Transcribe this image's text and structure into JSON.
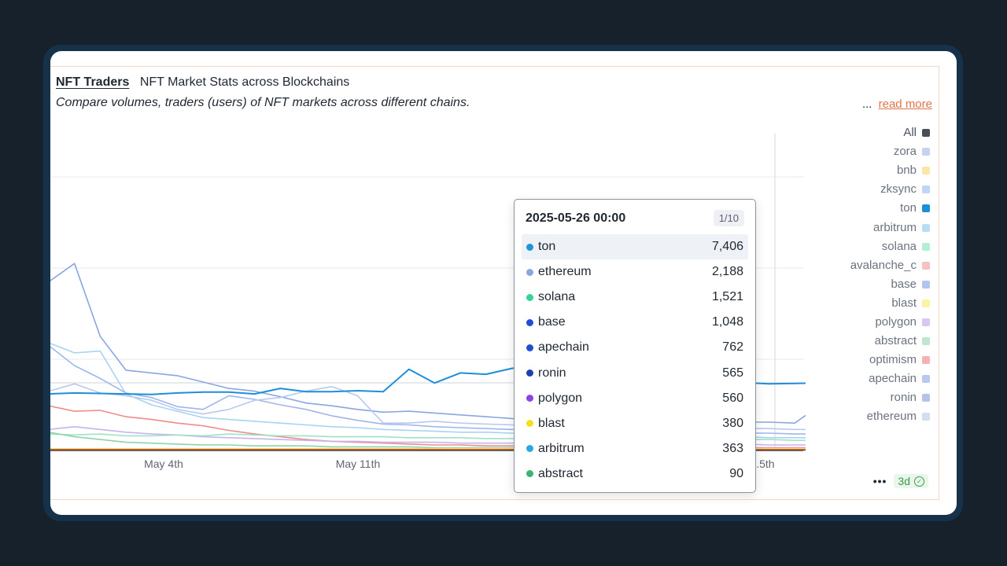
{
  "header": {
    "title_link": "NFT Traders",
    "title_sub": "NFT Market Stats across Blockchains",
    "description": "Compare volumes, traders (users) of NFT markets across different chains.",
    "ellipsis": "...",
    "read_more": "read more"
  },
  "legend": [
    {
      "label": "All",
      "color": "#4a4f55"
    },
    {
      "label": "zora",
      "color": "#c5d3ef"
    },
    {
      "label": "bnb",
      "color": "#fbe6a8"
    },
    {
      "label": "zksync",
      "color": "#c2d4f4"
    },
    {
      "label": "ton",
      "color": "#1f8ed8"
    },
    {
      "label": "arbitrum",
      "color": "#b6dff6"
    },
    {
      "label": "solana",
      "color": "#b3efd6"
    },
    {
      "label": "avalanche_c",
      "color": "#f5c2c2"
    },
    {
      "label": "base",
      "color": "#b3c4f0"
    },
    {
      "label": "blast",
      "color": "#fbf3a6"
    },
    {
      "label": "polygon",
      "color": "#d7c8f3"
    },
    {
      "label": "abstract",
      "color": "#bfe6cf"
    },
    {
      "label": "optimism",
      "color": "#f6b2b2"
    },
    {
      "label": "apechain",
      "color": "#b7c8f1"
    },
    {
      "label": "ronin",
      "color": "#b4c2ec"
    },
    {
      "label": "ethereum",
      "color": "#d3dff1"
    }
  ],
  "tooltip": {
    "date": "2025-05-26 00:00",
    "page": "1/10",
    "rows": [
      {
        "name": "ton",
        "value": "7,406",
        "color": "#1f94d6"
      },
      {
        "name": "ethereum",
        "value": "2,188",
        "color": "#8aa6e0"
      },
      {
        "name": "solana",
        "value": "1,521",
        "color": "#34d399"
      },
      {
        "name": "base",
        "value": "1,048",
        "color": "#1d4ed8"
      },
      {
        "name": "apechain",
        "value": "762",
        "color": "#1f4fd0"
      },
      {
        "name": "ronin",
        "value": "565",
        "color": "#1e40af"
      },
      {
        "name": "polygon",
        "value": "560",
        "color": "#8b45e0"
      },
      {
        "name": "blast",
        "value": "380",
        "color": "#f5e11a"
      },
      {
        "name": "arbitrum",
        "value": "363",
        "color": "#2ba8e0"
      },
      {
        "name": "abstract",
        "value": "90",
        "color": "#3cb371"
      }
    ]
  },
  "footer": {
    "ellipsis": "•••",
    "range": "3d"
  },
  "chart_data": {
    "type": "line",
    "x_tick_labels": [
      "May 4th",
      "May 11th",
      "...5th"
    ],
    "grid": true,
    "series": [
      {
        "name": "ton",
        "color": "#1f8ed8",
        "values": [
          6.2,
          6.3,
          6.25,
          6.2,
          6.15,
          6.3,
          6.4,
          6.4,
          6.2,
          6.8,
          6.45,
          6.45,
          6.55,
          6.45,
          8.9,
          7.4,
          8.5,
          8.35,
          9.0,
          9.3,
          8.2,
          7.6,
          7.4,
          7.5,
          7.45,
          7.35,
          7.4,
          7.45,
          7.3,
          7.35,
          7.4
        ]
      },
      {
        "name": "ethereum",
        "color": "#8aa6e0",
        "values": [
          18.5,
          20.5,
          12.5,
          8.8,
          8.5,
          8.2,
          7.5,
          6.8,
          6.5,
          5.9,
          5.2,
          4.9,
          4.5,
          4.2,
          4.3,
          4.1,
          3.9,
          3.7,
          3.5,
          3.4,
          3.4,
          3.3,
          3.3,
          3.3,
          3.3,
          3.2,
          3.2,
          3.1,
          3.1,
          3.0,
          5.0
        ]
      },
      {
        "name": "arbitrum",
        "color": "#a7d4f2",
        "values": [
          11.8,
          10.7,
          10.9,
          6.2,
          5.0,
          4.3,
          3.6,
          3.4,
          3.2,
          3.0,
          2.8,
          2.6,
          2.5,
          2.3,
          2.2,
          2.1,
          2.0,
          2.0,
          1.9,
          1.8,
          1.8,
          1.7,
          1.7,
          1.6,
          1.6,
          1.5,
          1.5,
          1.5,
          1.4,
          1.4,
          1.4
        ]
      },
      {
        "name": "base",
        "color": "#9eb6ea",
        "values": [
          11.5,
          9.3,
          7.9,
          6.3,
          5.8,
          4.8,
          4.5,
          6.0,
          5.6,
          5.0,
          4.5,
          3.8,
          3.3,
          2.9,
          2.8,
          2.6,
          2.5,
          2.4,
          2.3,
          2.2,
          2.2,
          2.1,
          2.1,
          2.0,
          2.0,
          2.0,
          1.9,
          1.9,
          1.9,
          1.8,
          1.8
        ]
      },
      {
        "name": "zksync",
        "color": "#b8c9f0",
        "values": [
          6.5,
          7.3,
          6.3,
          6.0,
          5.5,
          4.5,
          4.0,
          4.5,
          5.5,
          5.8,
          6.5,
          7.0,
          6.0,
          3.0,
          3.0,
          3.2,
          3.0,
          2.9,
          2.8,
          2.7,
          2.7,
          2.6,
          2.6,
          2.5,
          2.5,
          2.5,
          2.4,
          2.4,
          2.4,
          2.3,
          2.3
        ]
      },
      {
        "name": "optimism",
        "color": "#f08b8b",
        "values": [
          4.9,
          4.3,
          4.4,
          3.7,
          3.4,
          3.0,
          2.7,
          2.2,
          1.8,
          1.5,
          1.2,
          1.0,
          0.9,
          0.8,
          0.7,
          0.6,
          0.6,
          0.5,
          0.5,
          0.5,
          0.4,
          0.4,
          0.4,
          0.4,
          0.3,
          0.3,
          0.3,
          0.3,
          0.3,
          0.3,
          0.3
        ]
      },
      {
        "name": "polygon",
        "color": "#c7b3ef",
        "values": [
          2.3,
          2.6,
          2.3,
          2.0,
          1.8,
          1.7,
          1.5,
          1.4,
          1.3,
          1.2,
          1.1,
          1.0,
          1.0,
          0.9,
          0.9,
          0.9,
          0.8,
          0.8,
          0.8,
          0.8,
          0.7,
          0.7,
          0.7,
          0.7,
          0.7,
          0.7,
          0.7,
          0.7,
          0.6,
          0.6,
          0.6
        ]
      },
      {
        "name": "solana",
        "color": "#9fe3c6",
        "values": [
          1.8,
          1.7,
          1.8,
          1.6,
          1.6,
          1.7,
          1.6,
          1.8,
          1.7,
          1.6,
          1.6,
          1.5,
          1.5,
          1.5,
          1.4,
          1.4,
          1.4,
          1.3,
          1.3,
          1.3,
          1.3,
          1.3,
          1.2,
          1.2,
          1.2,
          1.2,
          1.2,
          1.2,
          1.2,
          1.1,
          1.1
        ]
      },
      {
        "name": "abstract",
        "color": "#8fd4a8",
        "values": [
          2.0,
          1.5,
          1.2,
          0.9,
          0.8,
          0.7,
          0.6,
          0.6,
          0.5,
          0.5,
          0.5,
          0.4,
          0.4,
          0.4,
          0.4,
          0.3,
          0.3,
          0.3,
          0.3,
          0.3,
          0.3,
          0.3,
          0.3,
          0.2,
          0.2,
          0.2,
          0.2,
          0.2,
          0.2,
          0.2,
          0.2
        ]
      },
      {
        "name": "blast",
        "color": "#f3e36b",
        "values": [
          0.2,
          0.2,
          0.2,
          0.2,
          0.2,
          0.2,
          0.2,
          0.2,
          0.2,
          0.2,
          0.2,
          0.2,
          0.2,
          0.2,
          0.2,
          0.2,
          0.2,
          0.2,
          0.2,
          0.2,
          0.2,
          0.2,
          0.2,
          0.2,
          0.2,
          0.2,
          0.2,
          0.2,
          0.2,
          0.2,
          0.2
        ]
      },
      {
        "name": "ronin",
        "color": "#2b2b2b",
        "values": [
          0.05,
          0.05,
          0.05,
          0.05,
          0.05,
          0.05,
          0.05,
          0.05,
          0.05,
          0.05,
          0.05,
          0.05,
          0.05,
          0.05,
          0.05,
          0.05,
          0.05,
          0.05,
          0.05,
          0.05,
          0.05,
          0.05,
          0.05,
          0.05,
          0.05,
          0.05,
          0.05,
          0.05,
          0.05,
          0.05,
          0.05
        ]
      },
      {
        "name": "avalanche_c",
        "color": "#c0654a",
        "values": [
          0.1,
          0.1,
          0.1,
          0.1,
          0.1,
          0.1,
          0.1,
          0.1,
          0.1,
          0.1,
          0.1,
          0.1,
          0.1,
          0.1,
          0.1,
          0.1,
          0.1,
          0.1,
          0.1,
          0.1,
          0.1,
          0.1,
          0.1,
          0.1,
          0.1,
          0.1,
          0.1,
          0.1,
          0.1,
          0.1,
          0.1
        ]
      }
    ]
  }
}
